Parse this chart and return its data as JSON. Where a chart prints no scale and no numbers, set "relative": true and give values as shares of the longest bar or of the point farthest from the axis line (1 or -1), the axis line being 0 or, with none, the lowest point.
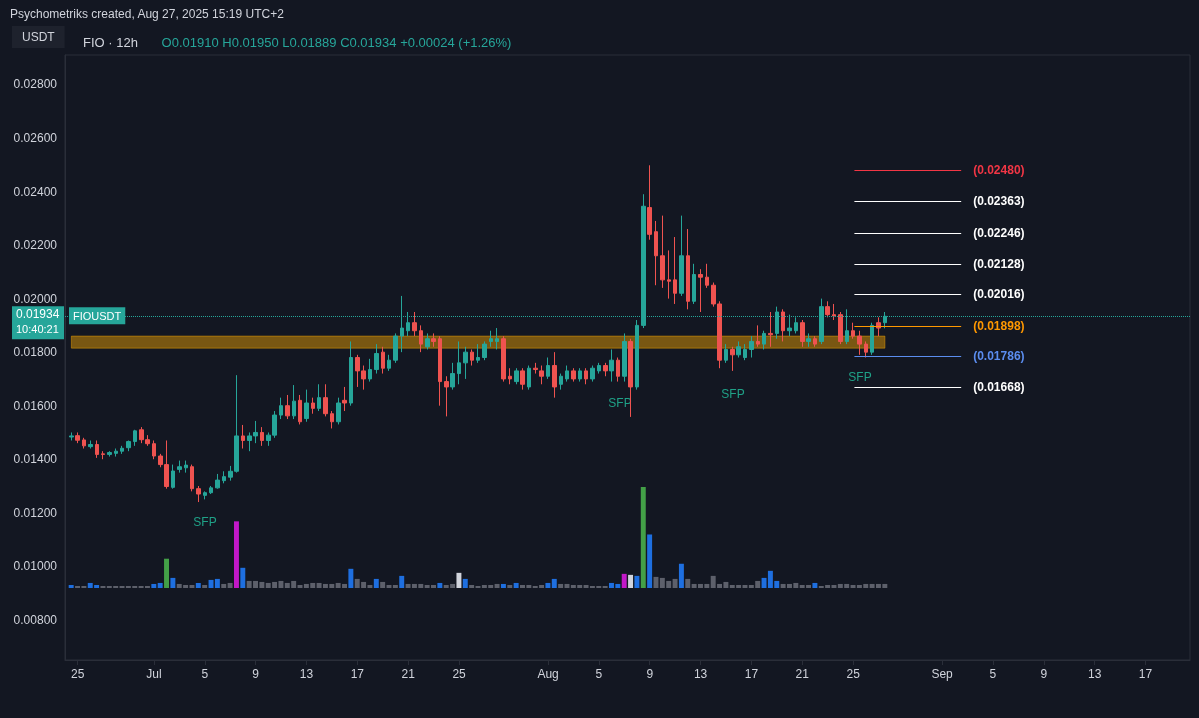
{
  "chart_data": [
    {
      "type": "candlestick",
      "title": "FIO · 12h",
      "subtitle": "O0.01910 H0.01950 L0.01889 C0.01934 +0.00024 (+1.26%)",
      "ylabel": "USDT",
      "annotations": [
        "Psychometriks created, Aug 27, 2025 15:19 UTC+2",
        "0.01934",
        "10:40:21",
        "SFP",
        "SFP",
        "SFP",
        "SFP"
      ],
      "x": [
        "2025-06-24T12:00",
        "2025-06-25T00:00",
        "2025-06-25T12:00",
        "2025-06-26T00:00",
        "2025-06-26T12:00",
        "2025-06-27T00:00",
        "2025-06-27T12:00",
        "2025-06-28T00:00",
        "2025-06-28T12:00",
        "2025-06-29T00:00",
        "2025-06-29T12:00",
        "2025-06-30T00:00",
        "2025-06-30T12:00",
        "2025-07-01T00:00",
        "2025-07-01T12:00",
        "2025-07-02T00:00",
        "2025-07-02T12:00",
        "2025-07-03T00:00",
        "2025-07-03T12:00",
        "2025-07-04T00:00",
        "2025-07-04T12:00",
        "2025-07-05T00:00",
        "2025-07-05T12:00",
        "2025-07-06T00:00",
        "2025-07-06T12:00",
        "2025-07-07T00:00",
        "2025-07-07T12:00",
        "2025-07-08T00:00",
        "2025-07-08T12:00",
        "2025-07-09T00:00",
        "2025-07-09T12:00",
        "2025-07-10T00:00",
        "2025-07-10T12:00",
        "2025-07-11T00:00",
        "2025-07-11T12:00",
        "2025-07-12T00:00",
        "2025-07-12T12:00",
        "2025-07-13T00:00",
        "2025-07-13T12:00",
        "2025-07-14T00:00",
        "2025-07-14T12:00",
        "2025-07-15T00:00",
        "2025-07-15T12:00",
        "2025-07-16T00:00",
        "2025-07-16T12:00",
        "2025-07-17T00:00",
        "2025-07-17T12:00",
        "2025-07-18T00:00",
        "2025-07-18T12:00",
        "2025-07-19T00:00",
        "2025-07-19T12:00",
        "2025-07-20T00:00",
        "2025-07-20T12:00",
        "2025-07-21T00:00",
        "2025-07-21T12:00",
        "2025-07-22T00:00",
        "2025-07-22T12:00",
        "2025-07-23T00:00",
        "2025-07-23T12:00",
        "2025-07-24T00:00",
        "2025-07-24T12:00",
        "2025-07-25T00:00",
        "2025-07-25T12:00",
        "2025-07-26T00:00",
        "2025-07-26T12:00",
        "2025-07-27T00:00",
        "2025-07-27T12:00",
        "2025-07-28T00:00",
        "2025-07-28T12:00",
        "2025-07-29T00:00",
        "2025-07-29T12:00",
        "2025-07-30T00:00",
        "2025-07-30T12:00",
        "2025-07-31T00:00",
        "2025-07-31T12:00",
        "2025-08-01T00:00",
        "2025-08-01T12:00",
        "2025-08-02T00:00",
        "2025-08-02T12:00",
        "2025-08-03T00:00",
        "2025-08-03T12:00",
        "2025-08-04T00:00",
        "2025-08-04T12:00",
        "2025-08-05T00:00",
        "2025-08-05T12:00",
        "2025-08-06T00:00",
        "2025-08-06T12:00",
        "2025-08-07T00:00",
        "2025-08-07T12:00",
        "2025-08-08T00:00",
        "2025-08-08T12:00",
        "2025-08-09T00:00",
        "2025-08-09T12:00",
        "2025-08-10T00:00",
        "2025-08-10T12:00",
        "2025-08-11T00:00",
        "2025-08-11T12:00",
        "2025-08-12T00:00",
        "2025-08-12T12:00",
        "2025-08-13T00:00",
        "2025-08-13T12:00",
        "2025-08-14T00:00",
        "2025-08-14T12:00",
        "2025-08-15T00:00",
        "2025-08-15T12:00",
        "2025-08-16T00:00",
        "2025-08-16T12:00",
        "2025-08-17T00:00",
        "2025-08-17T12:00",
        "2025-08-18T00:00",
        "2025-08-18T12:00",
        "2025-08-19T00:00",
        "2025-08-19T12:00",
        "2025-08-20T00:00",
        "2025-08-20T12:00",
        "2025-08-21T00:00",
        "2025-08-21T12:00",
        "2025-08-22T00:00",
        "2025-08-22T12:00",
        "2025-08-23T00:00",
        "2025-08-23T12:00",
        "2025-08-24T00:00",
        "2025-08-24T12:00",
        "2025-08-25T00:00",
        "2025-08-25T12:00",
        "2025-08-26T00:00",
        "2025-08-26T12:00",
        "2025-08-27T00:00",
        "2025-08-27T12:00"
      ],
      "ohlc": [
        [
          0.01483,
          0.015,
          0.0147,
          0.01487
        ],
        [
          0.01488,
          0.015,
          0.0146,
          0.01471
        ],
        [
          0.01472,
          0.0148,
          0.0144,
          0.0145
        ],
        [
          0.01447,
          0.0147,
          0.0144,
          0.01455
        ],
        [
          0.01455,
          0.0147,
          0.01405,
          0.01418
        ],
        [
          0.0142,
          0.0143,
          0.014,
          0.01418
        ],
        [
          0.01418,
          0.0143,
          0.0141,
          0.01425
        ],
        [
          0.01422,
          0.0144,
          0.0141,
          0.0143
        ],
        [
          0.0143,
          0.0145,
          0.0142,
          0.01441
        ],
        [
          0.01443,
          0.0147,
          0.0143,
          0.01466
        ],
        [
          0.01466,
          0.0151,
          0.0145,
          0.01506
        ],
        [
          0.0151,
          0.0152,
          0.0146,
          0.01473
        ],
        [
          0.01473,
          0.0149,
          0.0145,
          0.01458
        ],
        [
          0.01458,
          0.0147,
          0.014,
          0.01412
        ],
        [
          0.01412,
          0.0142,
          0.0137,
          0.0138
        ],
        [
          0.0138,
          0.0147,
          0.0129,
          0.01298
        ],
        [
          0.01295,
          0.0138,
          0.0129,
          0.01356
        ],
        [
          0.01362,
          0.01395,
          0.0135,
          0.01372
        ],
        [
          0.01368,
          0.01395,
          0.0135,
          0.01378
        ],
        [
          0.01372,
          0.0138,
          0.0128,
          0.0129
        ],
        [
          0.0129,
          0.013,
          0.0124,
          0.0127
        ],
        [
          0.01265,
          0.0128,
          0.0125,
          0.01275
        ],
        [
          0.01275,
          0.013,
          0.0127,
          0.01293
        ],
        [
          0.01293,
          0.01345,
          0.0129,
          0.01322
        ],
        [
          0.0132,
          0.01355,
          0.0131,
          0.01335
        ],
        [
          0.01333,
          0.01375,
          0.0132,
          0.01355
        ],
        [
          0.01355,
          0.01714,
          0.0135,
          0.01487
        ],
        [
          0.01487,
          0.01528,
          0.0144,
          0.0147
        ],
        [
          0.0147,
          0.015,
          0.0143,
          0.01487
        ],
        [
          0.01487,
          0.01543,
          0.0146,
          0.015
        ],
        [
          0.015,
          0.0152,
          0.0145,
          0.0147
        ],
        [
          0.0147,
          0.015,
          0.0145,
          0.0149
        ],
        [
          0.0149,
          0.0158,
          0.0148,
          0.01565
        ],
        [
          0.01565,
          0.0163,
          0.0155,
          0.016
        ],
        [
          0.016,
          0.0164,
          0.0155,
          0.01562
        ],
        [
          0.01562,
          0.01677,
          0.0155,
          0.01617
        ],
        [
          0.0162,
          0.0164,
          0.0153,
          0.0154
        ],
        [
          0.01552,
          0.0166,
          0.0154,
          0.0161
        ],
        [
          0.0161,
          0.0163,
          0.0157,
          0.0159
        ],
        [
          0.0159,
          0.0168,
          0.0158,
          0.0163
        ],
        [
          0.0163,
          0.0168,
          0.0156,
          0.0157
        ],
        [
          0.0157,
          0.0158,
          0.01515,
          0.0154
        ],
        [
          0.0154,
          0.0163,
          0.0153,
          0.0161
        ],
        [
          0.0162,
          0.0167,
          0.0158,
          0.0161
        ],
        [
          0.0161,
          0.0184,
          0.016,
          0.0178
        ],
        [
          0.0178,
          0.0179,
          0.0167,
          0.0173
        ],
        [
          0.0173,
          0.0175,
          0.0166,
          0.017
        ],
        [
          0.017,
          0.01775,
          0.0169,
          0.01735
        ],
        [
          0.01735,
          0.0183,
          0.0172,
          0.01795
        ],
        [
          0.018,
          0.0182,
          0.0172,
          0.0174
        ],
        [
          0.0174,
          0.0179,
          0.0173,
          0.0177
        ],
        [
          0.0177,
          0.0187,
          0.0176,
          0.0186
        ],
        [
          0.0186,
          0.0201,
          0.018,
          0.0189
        ],
        [
          0.0188,
          0.0195,
          0.0186,
          0.0191
        ],
        [
          0.0191,
          0.0195,
          0.0186,
          0.0188
        ],
        [
          0.0188,
          0.019,
          0.018,
          0.0183
        ],
        [
          0.0182,
          0.0187,
          0.0181,
          0.0185
        ],
        [
          0.0185,
          0.0187,
          0.0182,
          0.0184
        ],
        [
          0.0185,
          0.0186,
          0.016,
          0.0169
        ],
        [
          0.0169,
          0.0171,
          0.0156,
          0.0167
        ],
        [
          0.0167,
          0.0176,
          0.0166,
          0.0172
        ],
        [
          0.0172,
          0.0184,
          0.0168,
          0.0176
        ],
        [
          0.0176,
          0.0182,
          0.017,
          0.018
        ],
        [
          0.018,
          0.0181,
          0.0175,
          0.0177
        ],
        [
          0.0177,
          0.0183,
          0.0176,
          0.0178
        ],
        [
          0.0178,
          0.0184,
          0.0177,
          0.0183
        ],
        [
          0.0184,
          0.0188,
          0.0182,
          0.0185
        ],
        [
          0.0184,
          0.0189,
          0.0181,
          0.0185
        ],
        [
          0.0185,
          0.0186,
          0.0169,
          0.017
        ],
        [
          0.0171,
          0.0174,
          0.0168,
          0.017
        ],
        [
          0.0169,
          0.0174,
          0.0168,
          0.0173
        ],
        [
          0.0173,
          0.0174,
          0.0166,
          0.0168
        ],
        [
          0.0167,
          0.0175,
          0.0166,
          0.0174
        ],
        [
          0.0174,
          0.0176,
          0.0172,
          0.01735
        ],
        [
          0.0173,
          0.0175,
          0.0168,
          0.0171
        ],
        [
          0.0171,
          0.0178,
          0.017,
          0.0175
        ],
        [
          0.0175,
          0.018,
          0.0163,
          0.0167
        ],
        [
          0.0168,
          0.0172,
          0.0166,
          0.0171
        ],
        [
          0.017,
          0.0175,
          0.0169,
          0.0173
        ],
        [
          0.0173,
          0.0174,
          0.0169,
          0.017
        ],
        [
          0.017,
          0.0174,
          0.0169,
          0.0173
        ],
        [
          0.0173,
          0.0174,
          0.0168,
          0.017
        ],
        [
          0.017,
          0.0175,
          0.0169,
          0.0174
        ],
        [
          0.0173,
          0.0176,
          0.0172,
          0.0175
        ],
        [
          0.0175,
          0.0176,
          0.0171,
          0.0173
        ],
        [
          0.0173,
          0.0181,
          0.0169,
          0.0177
        ],
        [
          0.0177,
          0.0178,
          0.0169,
          0.0171
        ],
        [
          0.0171,
          0.0187,
          0.0169,
          0.0184
        ],
        [
          0.0184,
          0.0185,
          0.01558,
          0.0167
        ],
        [
          0.0167,
          0.0192,
          0.0166,
          0.019
        ],
        [
          0.019,
          0.0239,
          0.0189,
          0.02345
        ],
        [
          0.0234,
          0.02498,
          0.0222,
          0.0224
        ],
        [
          0.0225,
          0.0229,
          0.0205,
          0.0216
        ],
        [
          0.0216,
          0.0231,
          0.0204,
          0.0207
        ],
        [
          0.0207,
          0.0218,
          0.02,
          0.02065
        ],
        [
          0.0207,
          0.0223,
          0.0198,
          0.0202
        ],
        [
          0.0202,
          0.0231,
          0.0201,
          0.0216
        ],
        [
          0.0216,
          0.0226,
          0.0196,
          0.0199
        ],
        [
          0.0199,
          0.0213,
          0.0198,
          0.0209
        ],
        [
          0.0209,
          0.0211,
          0.0195,
          0.0208
        ],
        [
          0.0208,
          0.0213,
          0.0204,
          0.0205
        ],
        [
          0.0205,
          0.0206,
          0.0197,
          0.0198
        ],
        [
          0.0198,
          0.0199,
          0.0174,
          0.0177
        ],
        [
          0.0177,
          0.0183,
          0.0176,
          0.0181
        ],
        [
          0.0181,
          0.0182,
          0.0173,
          0.0179
        ],
        [
          0.0179,
          0.0184,
          0.0178,
          0.0182
        ],
        [
          0.0178,
          0.0183,
          0.0177,
          0.0181
        ],
        [
          0.0181,
          0.0186,
          0.0178,
          0.0184
        ],
        [
          0.0184,
          0.019,
          0.0182,
          0.0183
        ],
        [
          0.0183,
          0.0188,
          0.0181,
          0.0187
        ],
        [
          0.0187,
          0.0195,
          0.0182,
          0.01865
        ],
        [
          0.0187,
          0.0197,
          0.0185,
          0.0195
        ],
        [
          0.0195,
          0.0196,
          0.0184,
          0.0188
        ],
        [
          0.0188,
          0.0194,
          0.0186,
          0.0189
        ],
        [
          0.0188,
          0.0193,
          0.0187,
          0.0191
        ],
        [
          0.0191,
          0.0192,
          0.0182,
          0.0184
        ],
        [
          0.0184,
          0.0187,
          0.0182,
          0.0185
        ],
        [
          0.0185,
          0.0186,
          0.0182,
          0.0183
        ],
        [
          0.0184,
          0.02,
          0.0183,
          0.0197
        ],
        [
          0.0197,
          0.0199,
          0.0193,
          0.0194
        ],
        [
          0.0194,
          0.0198,
          0.0192,
          0.01935
        ],
        [
          0.0194,
          0.0195,
          0.0183,
          0.0184
        ],
        [
          0.0184,
          0.0196,
          0.0183,
          0.0188
        ],
        [
          0.0188,
          0.0191,
          0.0185,
          0.0186
        ],
        [
          0.0186,
          0.0188,
          0.0179,
          0.0183
        ],
        [
          0.0183,
          0.0184,
          0.0178,
          0.018
        ],
        [
          0.018,
          0.0191,
          0.0179,
          0.019
        ],
        [
          0.0191,
          0.0193,
          0.0186,
          0.0189
        ],
        [
          0.0191,
          0.0195,
          0.01889,
          0.01934
        ]
      ],
      "xlim": [
        "2025-06-24",
        "2025-09-20T12:00"
      ],
      "xticks": [
        {
          "value": "2025-06-25",
          "label": "25"
        },
        {
          "value": "2025-07-01",
          "label": "Jul"
        },
        {
          "value": "2025-07-05",
          "label": "5"
        },
        {
          "value": "2025-07-09",
          "label": "9"
        },
        {
          "value": "2025-07-13",
          "label": "13"
        },
        {
          "value": "2025-07-17",
          "label": "17"
        },
        {
          "value": "2025-07-21",
          "label": "21"
        },
        {
          "value": "2025-07-25",
          "label": "25"
        },
        {
          "value": "2025-08-01",
          "label": "Aug"
        },
        {
          "value": "2025-08-05",
          "label": "5"
        },
        {
          "value": "2025-08-09",
          "label": "9"
        },
        {
          "value": "2025-08-13",
          "label": "13"
        },
        {
          "value": "2025-08-17",
          "label": "17"
        },
        {
          "value": "2025-08-21",
          "label": "21"
        },
        {
          "value": "2025-08-25",
          "label": "25"
        },
        {
          "value": "2025-09-01",
          "label": "Sep"
        },
        {
          "value": "2025-09-05",
          "label": "5"
        },
        {
          "value": "2025-09-09",
          "label": "9"
        },
        {
          "value": "2025-09-13",
          "label": "13"
        },
        {
          "value": "2025-09-17",
          "label": "17"
        }
      ],
      "ylim": [
        0.0065,
        0.0291
      ],
      "yticks": [
        {
          "value": 0.008,
          "label": "0.00800"
        },
        {
          "value": 0.01,
          "label": "0.01000"
        },
        {
          "value": 0.012,
          "label": "0.01200"
        },
        {
          "value": 0.014,
          "label": "0.01400"
        },
        {
          "value": 0.016,
          "label": "0.01600"
        },
        {
          "value": 0.018,
          "label": "0.01800"
        },
        {
          "value": 0.02,
          "label": "0.02000"
        },
        {
          "value": 0.022,
          "label": "0.02200"
        },
        {
          "value": 0.024,
          "label": "0.02400"
        },
        {
          "value": 0.026,
          "label": "0.02600"
        },
        {
          "value": 0.028,
          "label": "0.02800"
        }
      ],
      "ref_lines": [
        {
          "axis": "y",
          "value": 0.0248,
          "label": "(0.02480)",
          "color": "#f23645"
        },
        {
          "axis": "y",
          "value": 0.02363,
          "label": "(0.02363)",
          "color": "#ffffff"
        },
        {
          "axis": "y",
          "value": 0.02246,
          "label": "(0.02246)",
          "color": "#ffffff"
        },
        {
          "axis": "y",
          "value": 0.02128,
          "label": "(0.02128)",
          "color": "#ffffff"
        },
        {
          "axis": "y",
          "value": 0.02016,
          "label": "(0.02016)",
          "color": "#ffffff"
        },
        {
          "axis": "y",
          "value": 0.01898,
          "label": "(0.01898)",
          "color": "#ff9800"
        },
        {
          "axis": "y",
          "value": 0.01786,
          "label": "(0.01786)",
          "color": "#5b8def"
        },
        {
          "axis": "y",
          "value": 0.01668,
          "label": "(0.01668)",
          "color": "#ffffff"
        },
        {
          "axis": "y",
          "value": 0.01934,
          "label": "FIOUSDT",
          "color": "#26a69a",
          "line_style": "dotted"
        }
      ],
      "bands": [
        {
          "axis": "y",
          "from": 0.01815,
          "to": 0.0186,
          "color": "#f7a600"
        }
      ]
    },
    {
      "type": "bar",
      "relative": true,
      "categories": [
        null,
        null,
        null,
        null,
        null,
        null,
        null,
        null,
        null,
        null,
        null,
        null,
        null,
        null,
        null,
        null,
        null,
        null,
        null,
        null,
        null,
        null,
        null,
        null,
        null,
        null,
        null,
        null,
        null,
        null,
        null,
        null,
        null,
        null,
        null,
        null,
        null,
        null,
        null,
        null,
        null,
        null,
        null,
        null,
        null,
        null,
        null,
        null,
        null,
        null,
        null,
        null,
        null,
        null,
        null,
        null,
        null,
        null,
        null,
        null,
        null,
        null,
        null,
        null,
        null,
        null,
        null,
        null,
        null,
        null,
        null,
        null,
        null,
        null,
        null,
        null,
        null,
        null,
        null,
        null,
        null,
        null,
        null,
        null,
        null,
        null,
        null,
        null,
        null,
        null,
        null,
        null,
        null,
        null,
        null,
        null,
        null,
        null,
        null,
        null,
        null,
        null,
        null,
        null,
        null,
        null,
        null,
        null,
        null,
        null,
        null,
        null,
        null,
        null,
        null,
        null,
        null,
        null,
        null,
        null,
        null,
        null,
        null,
        null,
        null,
        null,
        null,
        null,
        null
      ],
      "values": [
        0.03,
        0.02,
        0.02,
        0.05,
        0.03,
        0.02,
        0.02,
        0.02,
        0.02,
        0.02,
        0.02,
        0.02,
        0.02,
        0.04,
        0.05,
        0.29,
        0.1,
        0.04,
        0.03,
        0.03,
        0.05,
        0.03,
        0.08,
        0.09,
        0.04,
        0.05,
        0.66,
        0.2,
        0.07,
        0.07,
        0.06,
        0.05,
        0.06,
        0.07,
        0.05,
        0.07,
        0.03,
        0.04,
        0.05,
        0.05,
        0.04,
        0.04,
        0.05,
        0.04,
        0.19,
        0.09,
        0.06,
        0.03,
        0.09,
        0.06,
        0.03,
        0.03,
        0.12,
        0.04,
        0.04,
        0.04,
        0.03,
        0.03,
        0.05,
        0.03,
        0.04,
        0.15,
        0.09,
        0.03,
        0.02,
        0.03,
        0.03,
        0.04,
        0.04,
        0.03,
        0.05,
        0.03,
        0.03,
        0.02,
        0.03,
        0.05,
        0.09,
        0.04,
        0.04,
        0.03,
        0.03,
        0.03,
        0.02,
        0.02,
        0.02,
        0.05,
        0.04,
        0.14,
        0.13,
        0.12,
        1,
        0.53,
        0.11,
        0.1,
        0.07,
        0.09,
        0.24,
        0.09,
        0.04,
        0.04,
        0.04,
        0.12,
        0.04,
        0.06,
        0.03,
        0.03,
        0.03,
        0.03,
        0.07,
        0.1,
        0.17,
        0.07,
        0.04,
        0.04,
        0.05,
        0.03,
        0.03,
        0.05,
        0.02,
        0.03,
        0.03,
        0.04,
        0.04,
        0.03,
        0.03,
        0.04,
        0.04,
        0.04,
        0.04
      ],
      "colors": [
        "#1e6fe0",
        "#5d606b",
        "#5d606b",
        "#1e6fe0",
        "#1e6fe0",
        "#5d606b",
        "#5d606b",
        "#5d606b",
        "#5d606b",
        "#5d606b",
        "#5d606b",
        "#5d606b",
        "#5d606b",
        "#1e6fe0",
        "#1e6fe0",
        "#43a047",
        "#1e6fe0",
        "#5d606b",
        "#5d606b",
        "#5d606b",
        "#1e6fe0",
        "#5d606b",
        "#1e6fe0",
        "#1e6fe0",
        "#5d606b",
        "#5d606b",
        "#c218c8",
        "#1e6fe0",
        "#5d606b",
        "#5d606b",
        "#5d606b",
        "#5d606b",
        "#5d606b",
        "#5d606b",
        "#5d606b",
        "#5d606b",
        "#5d606b",
        "#5d606b",
        "#5d606b",
        "#5d606b",
        "#5d606b",
        "#5d606b",
        "#5d606b",
        "#5d606b",
        "#1e6fe0",
        "#5d606b",
        "#5d606b",
        "#5d606b",
        "#1e6fe0",
        "#5d606b",
        "#5d606b",
        "#5d606b",
        "#1e6fe0",
        "#5d606b",
        "#5d606b",
        "#5d606b",
        "#5d606b",
        "#5d606b",
        "#1e6fe0",
        "#5d606b",
        "#5d606b",
        "#d1d4dc",
        "#1e6fe0",
        "#5d606b",
        "#5d606b",
        "#5d606b",
        "#5d606b",
        "#5d606b",
        "#1e6fe0",
        "#5d606b",
        "#1e6fe0",
        "#5d606b",
        "#5d606b",
        "#5d606b",
        "#5d606b",
        "#1e6fe0",
        "#1e6fe0",
        "#5d606b",
        "#5d606b",
        "#5d606b",
        "#5d606b",
        "#5d606b",
        "#5d606b",
        "#5d606b",
        "#5d606b",
        "#1e6fe0",
        "#1e6fe0",
        "#c218c8",
        "#d1d4dc",
        "#1e6fe0",
        "#43a047",
        "#1e6fe0",
        "#5d606b",
        "#5d606b",
        "#5d606b",
        "#5d606b",
        "#1e6fe0",
        "#5d606b",
        "#5d606b",
        "#5d606b",
        "#5d606b",
        "#5d606b",
        "#5d606b",
        "#5d606b",
        "#5d606b",
        "#5d606b",
        "#5d606b",
        "#5d606b",
        "#5d606b",
        "#1e6fe0",
        "#1e6fe0",
        "#1e6fe0",
        "#5d606b",
        "#5d606b",
        "#5d606b",
        "#5d606b",
        "#5d606b",
        "#1e6fe0",
        "#5d606b",
        "#5d606b",
        "#5d606b",
        "#5d606b",
        "#5d606b",
        "#5d606b",
        "#5d606b",
        "#5d606b",
        "#5d606b",
        "#5d606b",
        "#5d606b"
      ]
    }
  ]
}
